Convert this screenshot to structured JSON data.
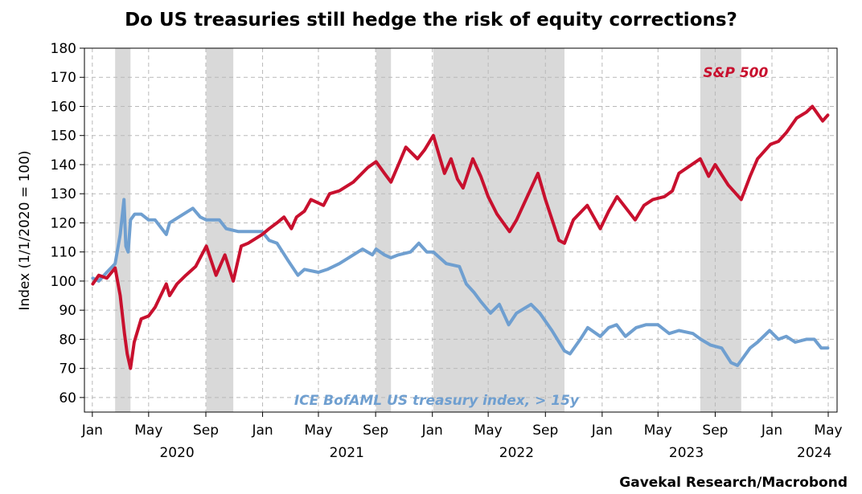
{
  "title": "Do US treasuries still hedge the risk of equity corrections?",
  "source": "Gavekal Research/Macrobond",
  "colors": {
    "sp500": "#c8102e",
    "treasury": "#6f9fd0",
    "shade": "#d9d9d9",
    "grid": "#b9b9b9"
  },
  "chart_data": {
    "type": "line",
    "title": "Do US treasuries still hedge the risk of equity corrections?",
    "ylabel": "Index (1/1/2020 = 100)",
    "xlabel": "",
    "ylim": [
      55,
      180
    ],
    "yticks": [
      60,
      70,
      80,
      90,
      100,
      110,
      120,
      130,
      140,
      150,
      160,
      170,
      180
    ],
    "xlim": [
      "2019-12-15",
      "2024-05-20"
    ],
    "x_month_ticks": [
      {
        "date": "2020-01-01",
        "label": "Jan"
      },
      {
        "date": "2020-05-01",
        "label": "May"
      },
      {
        "date": "2020-09-01",
        "label": "Sep"
      },
      {
        "date": "2021-01-01",
        "label": "Jan"
      },
      {
        "date": "2021-05-01",
        "label": "May"
      },
      {
        "date": "2021-09-01",
        "label": "Sep"
      },
      {
        "date": "2022-01-01",
        "label": "Jan"
      },
      {
        "date": "2022-05-01",
        "label": "May"
      },
      {
        "date": "2022-09-01",
        "label": "Sep"
      },
      {
        "date": "2023-01-01",
        "label": "Jan"
      },
      {
        "date": "2023-05-01",
        "label": "May"
      },
      {
        "date": "2023-09-01",
        "label": "Sep"
      },
      {
        "date": "2024-01-01",
        "label": "Jan"
      },
      {
        "date": "2024-05-01",
        "label": "May"
      }
    ],
    "x_year_labels": [
      {
        "date": "2020-07-01",
        "label": "2020"
      },
      {
        "date": "2021-07-01",
        "label": "2021"
      },
      {
        "date": "2022-07-01",
        "label": "2022"
      },
      {
        "date": "2023-07-01",
        "label": "2023"
      },
      {
        "date": "2024-04-01",
        "label": "2024"
      }
    ],
    "grid": true,
    "shaded_periods": [
      [
        "2020-02-19",
        "2020-03-23"
      ],
      [
        "2020-09-02",
        "2020-10-30"
      ],
      [
        "2021-09-02",
        "2021-10-04"
      ],
      [
        "2022-01-03",
        "2022-10-12"
      ],
      [
        "2023-07-31",
        "2023-10-27"
      ]
    ],
    "series": [
      {
        "name": "S&P 500",
        "color": "#c8102e",
        "label_at": [
          "2023-10-15",
          170
        ],
        "points": [
          [
            "2020-01-02",
            99
          ],
          [
            "2020-01-15",
            102
          ],
          [
            "2020-02-01",
            101
          ],
          [
            "2020-02-19",
            104.5
          ],
          [
            "2020-03-01",
            95
          ],
          [
            "2020-03-10",
            82
          ],
          [
            "2020-03-16",
            75
          ],
          [
            "2020-03-23",
            70
          ],
          [
            "2020-03-31",
            79
          ],
          [
            "2020-04-15",
            87
          ],
          [
            "2020-05-01",
            88
          ],
          [
            "2020-05-15",
            91
          ],
          [
            "2020-06-08",
            99
          ],
          [
            "2020-06-15",
            95
          ],
          [
            "2020-07-01",
            99
          ],
          [
            "2020-07-20",
            102
          ],
          [
            "2020-08-10",
            105
          ],
          [
            "2020-09-02",
            112
          ],
          [
            "2020-09-23",
            102
          ],
          [
            "2020-10-12",
            109
          ],
          [
            "2020-10-30",
            100
          ],
          [
            "2020-11-16",
            112
          ],
          [
            "2020-12-01",
            113
          ],
          [
            "2020-12-31",
            116
          ],
          [
            "2021-01-15",
            118
          ],
          [
            "2021-02-01",
            120
          ],
          [
            "2021-02-16",
            122
          ],
          [
            "2021-03-04",
            118
          ],
          [
            "2021-03-15",
            122
          ],
          [
            "2021-04-01",
            124
          ],
          [
            "2021-04-15",
            128
          ],
          [
            "2021-05-12",
            126
          ],
          [
            "2021-05-25",
            130
          ],
          [
            "2021-06-15",
            131
          ],
          [
            "2021-07-15",
            134
          ],
          [
            "2021-08-15",
            139
          ],
          [
            "2021-09-02",
            141
          ],
          [
            "2021-09-20",
            137
          ],
          [
            "2021-10-04",
            134
          ],
          [
            "2021-10-20",
            140
          ],
          [
            "2021-11-05",
            146
          ],
          [
            "2021-11-30",
            142
          ],
          [
            "2021-12-15",
            145
          ],
          [
            "2022-01-03",
            150
          ],
          [
            "2022-01-27",
            137
          ],
          [
            "2022-02-10",
            142
          ],
          [
            "2022-02-24",
            135
          ],
          [
            "2022-03-08",
            132
          ],
          [
            "2022-03-29",
            142
          ],
          [
            "2022-04-15",
            136
          ],
          [
            "2022-05-01",
            129
          ],
          [
            "2022-05-20",
            123
          ],
          [
            "2022-06-16",
            117
          ],
          [
            "2022-07-01",
            121
          ],
          [
            "2022-08-16",
            137
          ],
          [
            "2022-09-01",
            128
          ],
          [
            "2022-09-30",
            114
          ],
          [
            "2022-10-12",
            113
          ],
          [
            "2022-10-31",
            121
          ],
          [
            "2022-11-30",
            126
          ],
          [
            "2022-12-28",
            118
          ],
          [
            "2023-01-15",
            124
          ],
          [
            "2023-02-02",
            129
          ],
          [
            "2023-03-13",
            121
          ],
          [
            "2023-04-01",
            126
          ],
          [
            "2023-04-20",
            128
          ],
          [
            "2023-05-15",
            129
          ],
          [
            "2023-06-01",
            131
          ],
          [
            "2023-06-15",
            137
          ],
          [
            "2023-07-31",
            142
          ],
          [
            "2023-08-18",
            136
          ],
          [
            "2023-09-01",
            140
          ],
          [
            "2023-09-29",
            133
          ],
          [
            "2023-10-27",
            128
          ],
          [
            "2023-11-15",
            136
          ],
          [
            "2023-12-01",
            142
          ],
          [
            "2023-12-29",
            147
          ],
          [
            "2024-01-15",
            148
          ],
          [
            "2024-02-01",
            151
          ],
          [
            "2024-02-23",
            156
          ],
          [
            "2024-03-15",
            158
          ],
          [
            "2024-03-28",
            160
          ],
          [
            "2024-04-19",
            155
          ],
          [
            "2024-04-30",
            157
          ]
        ]
      },
      {
        "name": "ICE BofAML US treasury index, > 15y",
        "color": "#6f9fd0",
        "label_at": [
          "2022-01-10",
          57.5
        ],
        "points": [
          [
            "2020-01-02",
            101
          ],
          [
            "2020-01-15",
            100
          ],
          [
            "2020-02-01",
            103
          ],
          [
            "2020-02-19",
            106
          ],
          [
            "2020-03-01",
            116
          ],
          [
            "2020-03-09",
            128
          ],
          [
            "2020-03-13",
            112
          ],
          [
            "2020-03-18",
            110
          ],
          [
            "2020-03-23",
            121
          ],
          [
            "2020-04-01",
            123
          ],
          [
            "2020-04-15",
            123
          ],
          [
            "2020-05-01",
            121
          ],
          [
            "2020-05-15",
            121
          ],
          [
            "2020-06-08",
            116
          ],
          [
            "2020-06-15",
            120
          ],
          [
            "2020-07-15",
            123
          ],
          [
            "2020-08-04",
            125
          ],
          [
            "2020-08-20",
            122
          ],
          [
            "2020-09-02",
            121
          ],
          [
            "2020-09-30",
            121
          ],
          [
            "2020-10-15",
            118
          ],
          [
            "2020-11-10",
            117
          ],
          [
            "2020-12-01",
            117
          ],
          [
            "2020-12-31",
            117
          ],
          [
            "2021-01-15",
            114
          ],
          [
            "2021-02-01",
            113
          ],
          [
            "2021-02-25",
            107
          ],
          [
            "2021-03-18",
            102
          ],
          [
            "2021-04-01",
            104
          ],
          [
            "2021-05-01",
            103
          ],
          [
            "2021-05-20",
            104
          ],
          [
            "2021-06-15",
            106
          ],
          [
            "2021-07-15",
            109
          ],
          [
            "2021-08-04",
            111
          ],
          [
            "2021-08-25",
            109
          ],
          [
            "2021-09-02",
            111
          ],
          [
            "2021-09-20",
            109
          ],
          [
            "2021-10-04",
            108
          ],
          [
            "2021-10-20",
            109
          ],
          [
            "2021-11-15",
            110
          ],
          [
            "2021-12-03",
            113
          ],
          [
            "2021-12-20",
            110
          ],
          [
            "2022-01-03",
            110
          ],
          [
            "2022-01-31",
            106
          ],
          [
            "2022-02-28",
            105
          ],
          [
            "2022-03-15",
            99
          ],
          [
            "2022-04-01",
            96
          ],
          [
            "2022-04-15",
            93
          ],
          [
            "2022-05-06",
            89
          ],
          [
            "2022-05-25",
            92
          ],
          [
            "2022-06-14",
            85
          ],
          [
            "2022-07-01",
            89
          ],
          [
            "2022-08-01",
            92
          ],
          [
            "2022-08-20",
            89
          ],
          [
            "2022-09-15",
            83
          ],
          [
            "2022-10-12",
            76
          ],
          [
            "2022-10-24",
            75
          ],
          [
            "2022-11-15",
            80
          ],
          [
            "2022-12-01",
            84
          ],
          [
            "2022-12-28",
            81
          ],
          [
            "2023-01-15",
            84
          ],
          [
            "2023-02-01",
            85
          ],
          [
            "2023-02-20",
            81
          ],
          [
            "2023-03-15",
            84
          ],
          [
            "2023-04-05",
            85
          ],
          [
            "2023-05-01",
            85
          ],
          [
            "2023-05-25",
            82
          ],
          [
            "2023-06-15",
            83
          ],
          [
            "2023-07-15",
            82
          ],
          [
            "2023-08-01",
            80
          ],
          [
            "2023-08-22",
            78
          ],
          [
            "2023-09-15",
            77
          ],
          [
            "2023-10-05",
            72
          ],
          [
            "2023-10-19",
            71
          ],
          [
            "2023-11-15",
            77
          ],
          [
            "2023-12-01",
            79
          ],
          [
            "2023-12-27",
            83
          ],
          [
            "2024-01-15",
            80
          ],
          [
            "2024-02-01",
            81
          ],
          [
            "2024-02-20",
            79
          ],
          [
            "2024-03-15",
            80
          ],
          [
            "2024-04-01",
            80
          ],
          [
            "2024-04-16",
            77
          ],
          [
            "2024-04-30",
            77
          ]
        ]
      }
    ]
  }
}
